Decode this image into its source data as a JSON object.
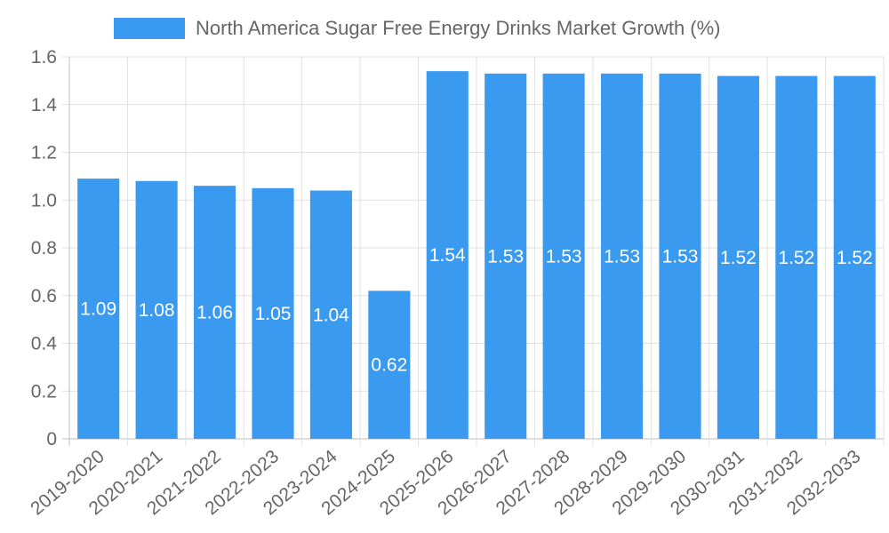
{
  "chart_data": {
    "type": "bar",
    "title": "",
    "xlabel": "",
    "ylabel": "",
    "legend_position": "top",
    "ylim": [
      0,
      1.6
    ],
    "yticks": [
      "0",
      "0.2",
      "0.4",
      "0.6",
      "0.8",
      "1.0",
      "1.2",
      "1.4",
      "1.6"
    ],
    "ytick_values": [
      0,
      0.2,
      0.4,
      0.6,
      0.8,
      1.0,
      1.2,
      1.4,
      1.6
    ],
    "grid": true,
    "categories": [
      "2019-2020",
      "2020-2021",
      "2021-2022",
      "2022-2023",
      "2023-2024",
      "2024-2025",
      "2025-2026",
      "2026-2027",
      "2027-2028",
      "2028-2029",
      "2029-2030",
      "2030-2031",
      "2031-2032",
      "2032-2033"
    ],
    "series": [
      {
        "name": "North America Sugar Free Energy Drinks Market Growth (%)",
        "color": "#3a9af0",
        "values": [
          1.09,
          1.08,
          1.06,
          1.05,
          1.04,
          0.62,
          1.54,
          1.53,
          1.53,
          1.53,
          1.53,
          1.52,
          1.52,
          1.52
        ],
        "labels": [
          "1.09",
          "1.08",
          "1.06",
          "1.05",
          "1.04",
          "0.62",
          "1.54",
          "1.53",
          "1.53",
          "1.53",
          "1.53",
          "1.52",
          "1.52",
          "1.52"
        ]
      }
    ]
  }
}
